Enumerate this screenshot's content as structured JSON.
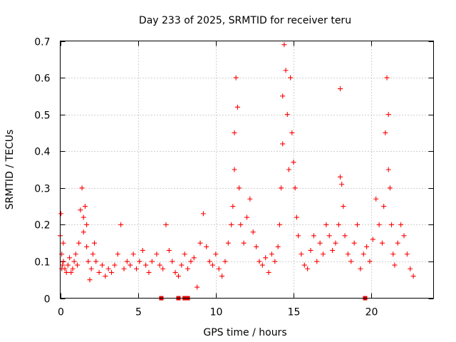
{
  "chart_data": {
    "type": "scatter",
    "title": "Day 233 of 2025, SRMTID for receiver teru",
    "xlabel": "GPS time / hours",
    "ylabel": "SRMTID / TECUs",
    "xlim": [
      0,
      24
    ],
    "ylim": [
      0,
      0.7
    ],
    "xticks": [
      0,
      5,
      10,
      15,
      20
    ],
    "xtick_labels": [
      "0",
      "5",
      "10",
      "15",
      "20"
    ],
    "yticks": [
      0,
      0.1,
      0.2,
      0.3,
      0.4,
      0.5,
      0.6,
      0.7
    ],
    "ytick_labels": [
      "0",
      "0.1",
      "0.2",
      "0.3",
      "0.4",
      "0.5",
      "0.6",
      "0.7"
    ],
    "grid": true,
    "marker": "plus",
    "color": "#ff0000",
    "gap_marker_color": "#e00000",
    "series": [
      {
        "name": "SRMTID",
        "x": [
          0.0,
          0.05,
          0.1,
          0.1,
          0.15,
          0.2,
          0.2,
          0.3,
          0.4,
          0.5,
          0.6,
          0.7,
          0.8,
          0.9,
          1.0,
          1.1,
          1.2,
          1.3,
          1.4,
          1.5,
          1.5,
          1.6,
          1.7,
          1.7,
          1.8,
          1.9,
          2.0,
          2.1,
          2.2,
          2.3,
          2.5,
          2.7,
          2.9,
          3.1,
          3.3,
          3.5,
          3.7,
          3.9,
          4.1,
          4.3,
          4.5,
          4.7,
          4.9,
          5.1,
          5.3,
          5.5,
          5.7,
          5.9,
          6.2,
          6.4,
          6.6,
          6.8,
          7.0,
          7.2,
          7.4,
          7.6,
          7.8,
          8.0,
          8.2,
          8.4,
          8.6,
          8.8,
          9.0,
          9.2,
          9.4,
          9.6,
          9.8,
          10.0,
          10.2,
          10.4,
          10.6,
          10.8,
          11.0,
          11.1,
          11.2,
          11.2,
          11.3,
          11.4,
          11.5,
          11.6,
          11.8,
          12.0,
          12.2,
          12.4,
          12.6,
          12.8,
          13.0,
          13.2,
          13.4,
          13.6,
          13.8,
          14.0,
          14.1,
          14.2,
          14.3,
          14.3,
          14.4,
          14.5,
          14.6,
          14.7,
          14.8,
          14.9,
          15.0,
          15.1,
          15.2,
          15.3,
          15.5,
          15.7,
          15.9,
          16.1,
          16.3,
          16.5,
          16.7,
          16.9,
          17.1,
          17.3,
          17.5,
          17.7,
          17.9,
          18.0,
          18.0,
          18.1,
          18.2,
          18.3,
          18.5,
          18.7,
          18.9,
          19.1,
          19.3,
          19.5,
          19.7,
          19.9,
          20.1,
          20.3,
          20.5,
          20.7,
          20.8,
          20.9,
          21.0,
          21.1,
          21.1,
          21.2,
          21.3,
          21.4,
          21.5,
          21.7,
          21.9,
          22.1,
          22.3,
          22.5,
          22.7
        ],
        "y": [
          0.17,
          0.23,
          0.12,
          0.08,
          0.09,
          0.1,
          0.15,
          0.08,
          0.07,
          0.09,
          0.11,
          0.07,
          0.08,
          0.1,
          0.12,
          0.09,
          0.15,
          0.24,
          0.3,
          0.22,
          0.18,
          0.25,
          0.2,
          0.14,
          0.1,
          0.05,
          0.08,
          0.12,
          0.15,
          0.1,
          0.07,
          0.09,
          0.06,
          0.08,
          0.07,
          0.09,
          0.12,
          0.2,
          0.08,
          0.1,
          0.09,
          0.12,
          0.08,
          0.1,
          0.13,
          0.09,
          0.07,
          0.1,
          0.12,
          0.09,
          0.08,
          0.2,
          0.13,
          0.1,
          0.07,
          0.06,
          0.09,
          0.12,
          0.08,
          0.1,
          0.11,
          0.03,
          0.15,
          0.23,
          0.14,
          0.1,
          0.09,
          0.12,
          0.08,
          0.06,
          0.1,
          0.15,
          0.2,
          0.25,
          0.35,
          0.45,
          0.6,
          0.52,
          0.3,
          0.2,
          0.15,
          0.22,
          0.27,
          0.18,
          0.14,
          0.1,
          0.09,
          0.11,
          0.07,
          0.12,
          0.1,
          0.14,
          0.2,
          0.3,
          0.42,
          0.55,
          0.69,
          0.62,
          0.5,
          0.35,
          0.6,
          0.45,
          0.37,
          0.3,
          0.22,
          0.17,
          0.12,
          0.09,
          0.08,
          0.13,
          0.17,
          0.1,
          0.15,
          0.12,
          0.2,
          0.17,
          0.13,
          0.15,
          0.2,
          0.33,
          0.57,
          0.31,
          0.25,
          0.17,
          0.12,
          0.1,
          0.15,
          0.2,
          0.08,
          0.12,
          0.14,
          0.1,
          0.16,
          0.27,
          0.2,
          0.15,
          0.25,
          0.45,
          0.6,
          0.5,
          0.35,
          0.3,
          0.2,
          0.12,
          0.09,
          0.15,
          0.2,
          0.17,
          0.12,
          0.08,
          0.06
        ]
      }
    ],
    "gap_markers_x": [
      6.5,
      7.6,
      8.0,
      8.2,
      19.6
    ]
  }
}
